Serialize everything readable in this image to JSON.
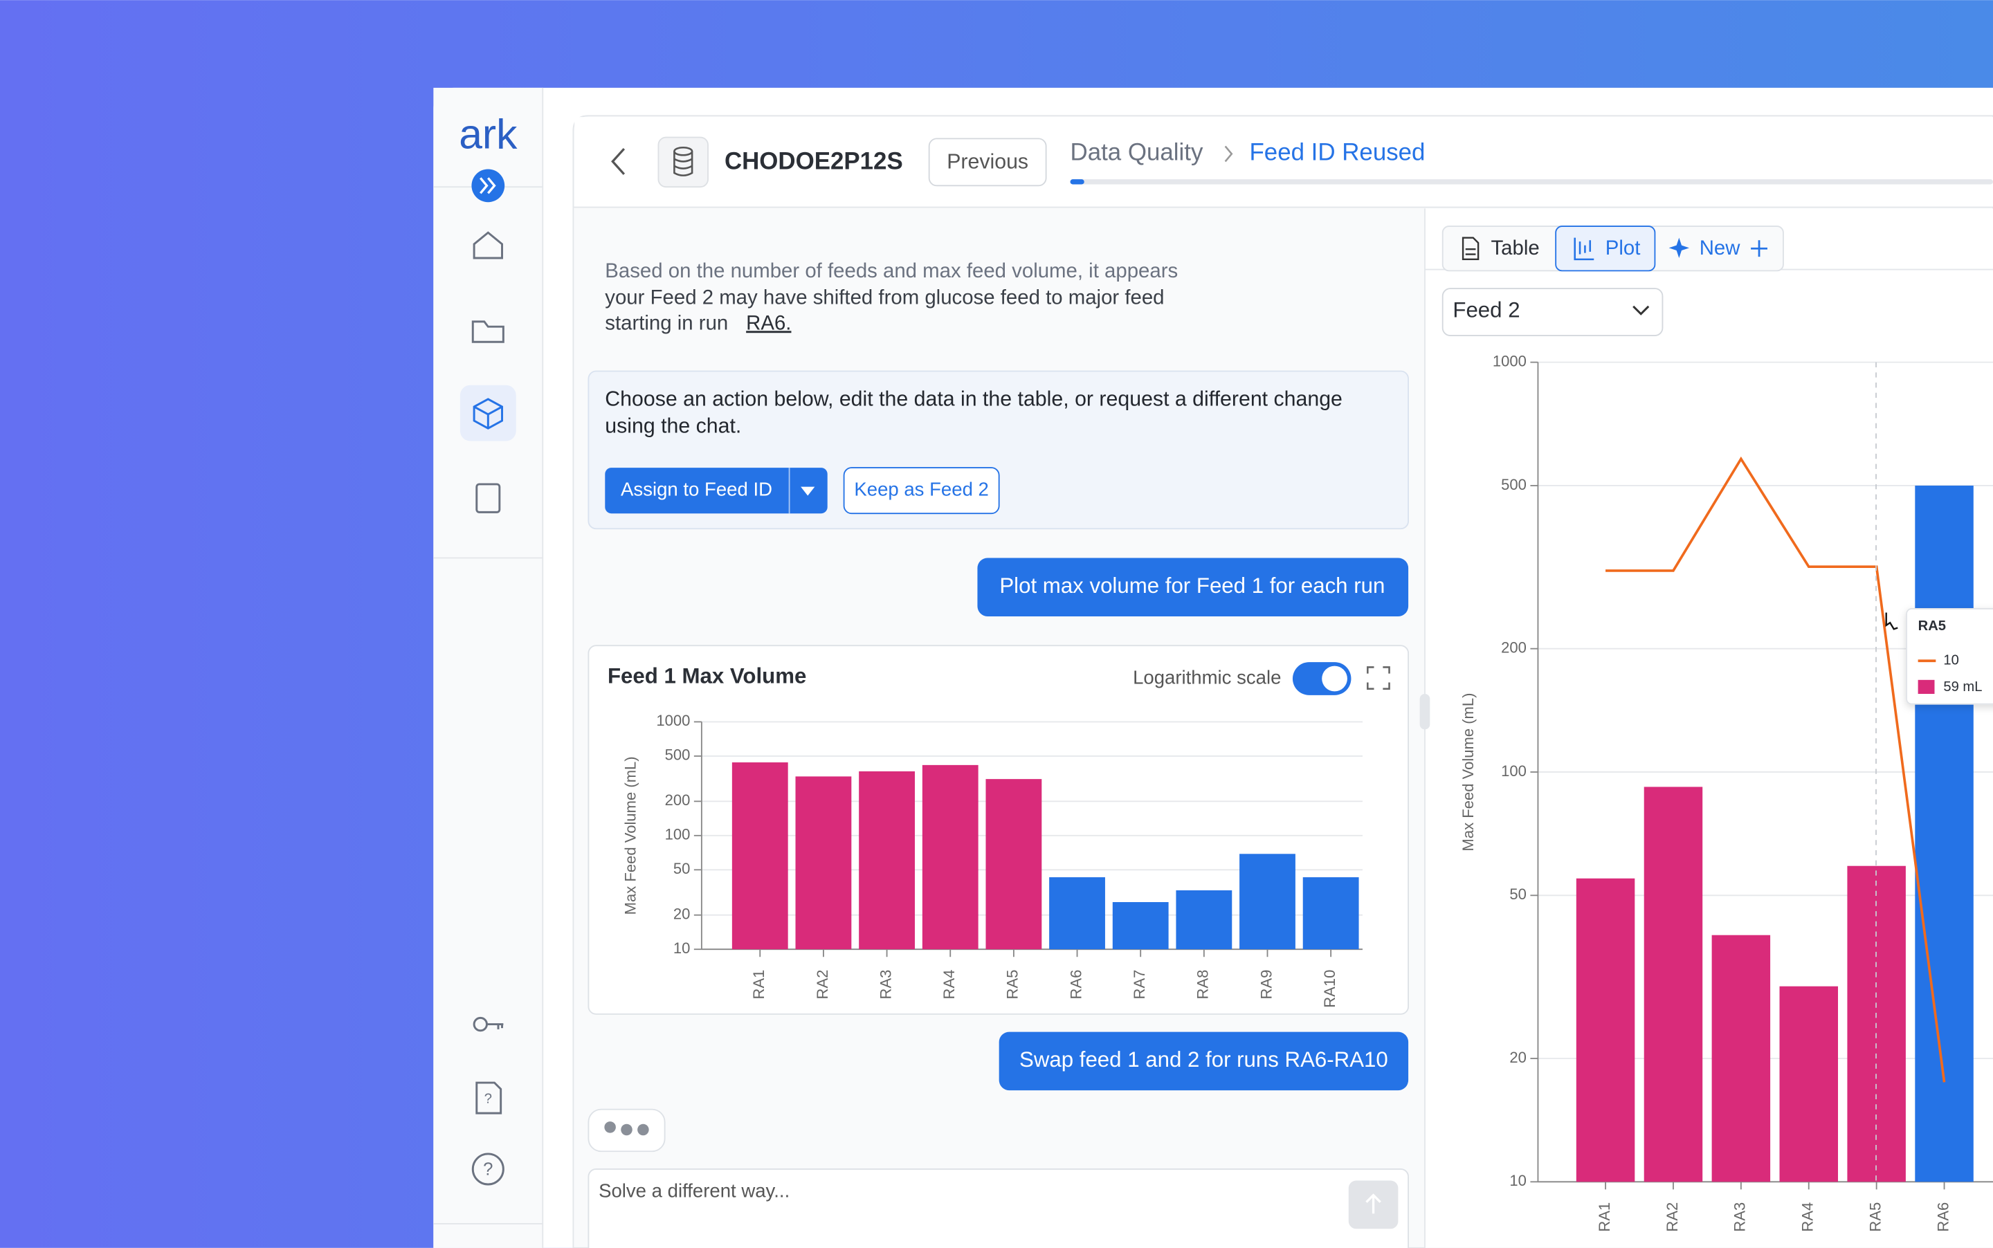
{
  "sidebar": {
    "logo": "ark"
  },
  "header": {
    "dataset": "CHODOE2P12S",
    "previous_button": "Previous",
    "breadcrumb": [
      "Data Quality",
      "Feed ID Reused"
    ]
  },
  "chat": {
    "message_lines": [
      "Based on the number of feeds and max feed volume, it appears",
      "your Feed 2 may have shifted from glucose feed to major feed",
      "starting in run"
    ],
    "run_link": "RA6.",
    "action_prompt_lines": [
      "Choose an action below, edit the data in the table, or request a different change",
      "using the chat."
    ],
    "buttons": [
      "Assign to Feed ID",
      "Keep as Feed 2"
    ],
    "user_messages": [
      "Plot max volume for Feed 1 for each run",
      "Swap feed 1 and 2 for runs RA6-RA10"
    ],
    "input_placeholder": "Solve a different way..."
  },
  "chat_chart": {
    "type": "bar",
    "title": "Feed 1 Max Volume",
    "toggle_label": "Logarithmic scale",
    "log_scale": true,
    "y_label": "Max Feed Volume (mL)",
    "categories": [
      "RA1",
      "RA2",
      "RA3",
      "RA4",
      "RA5",
      "RA6",
      "RA7",
      "RA8",
      "RA9",
      "RA10"
    ],
    "values": [
      440,
      331,
      367,
      417,
      314,
      43,
      26,
      33,
      69,
      43
    ],
    "colors": [
      "#d92b7a",
      "#d92b7a",
      "#d92b7a",
      "#d92b7a",
      "#d92b7a",
      "#2573e6",
      "#2573e6",
      "#2573e6",
      "#2573e6",
      "#2573e6"
    ],
    "ylim": [
      10,
      1000
    ],
    "yticks": [
      10,
      20,
      50,
      100,
      200,
      500,
      1000
    ],
    "grid": true
  },
  "panel": {
    "tabs": [
      "Table",
      "Plot",
      "New"
    ],
    "dropdown": "Feed 2"
  },
  "panel_chart": {
    "type": "bar",
    "log_scale": true,
    "y_label": "Max Feed Volume (mL)",
    "categories": [
      "RA1",
      "RA2",
      "RA3",
      "RA4",
      "RA5",
      "RA6"
    ],
    "series": [
      {
        "type": "bar",
        "colors": [
          "#d92b7a",
          "#d92b7a",
          "#d92b7a",
          "#d92b7a",
          "#d92b7a",
          "#2573e6"
        ],
        "values": [
          55,
          92,
          40,
          30,
          59,
          500
        ]
      },
      {
        "type": "line",
        "color": "#f06a1d",
        "values": [
          310,
          310,
          581,
          317,
          317,
          17.5
        ]
      }
    ],
    "ylim": [
      10,
      1000
    ],
    "yticks": [
      10,
      20,
      50,
      100,
      200,
      500,
      1000
    ],
    "grid": true,
    "tooltip": {
      "title": "RA5",
      "items": [
        "10",
        "59 mL"
      ]
    }
  }
}
